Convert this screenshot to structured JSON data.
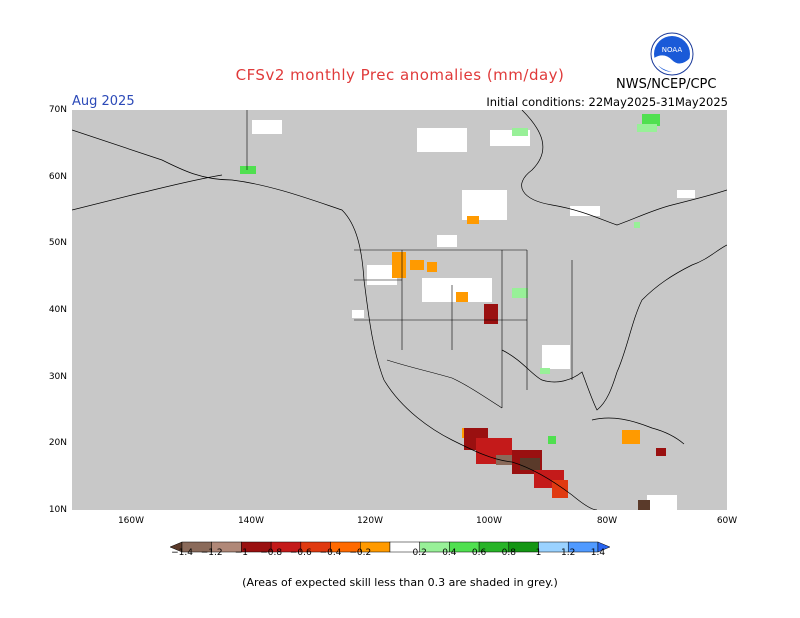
{
  "header": {
    "title": "CFSv2 monthly Prec anomalies (mm/day)",
    "period": "Aug 2025",
    "initial_conditions": "Initial conditions: 22May2025-31May2025",
    "agency": "NWS/NCEP/CPC",
    "logo_text": "NOAA"
  },
  "axes": {
    "lat_labels": [
      "70N",
      "60N",
      "50N",
      "40N",
      "30N",
      "20N",
      "10N"
    ],
    "lon_labels": [
      "160W",
      "140W",
      "120W",
      "100W",
      "80W",
      "60W"
    ]
  },
  "colorbar": {
    "labels": [
      "−1.4",
      "−1.2",
      "−1",
      "−0.8",
      "−0.6",
      "−0.4",
      "−0.2",
      "0.2",
      "0.4",
      "0.6",
      "0.8",
      "1",
      "1.2",
      "1.4"
    ],
    "colors": [
      "#5a3a2a",
      "#8a6a5a",
      "#b08878",
      "#9a1010",
      "#c41a1a",
      "#e03a10",
      "#ff6a00",
      "#ff9a00",
      "#ffffff",
      "#98f098",
      "#50e050",
      "#28b428",
      "#149614",
      "#9ad2ff",
      "#509aff",
      "#2864f0"
    ]
  },
  "footer": {
    "note": "(Areas of expected skill less than 0.3 are shaded in grey.)"
  },
  "map": {
    "land_color": "#c8c8c8",
    "ocean_color": "#c8c8c8"
  }
}
